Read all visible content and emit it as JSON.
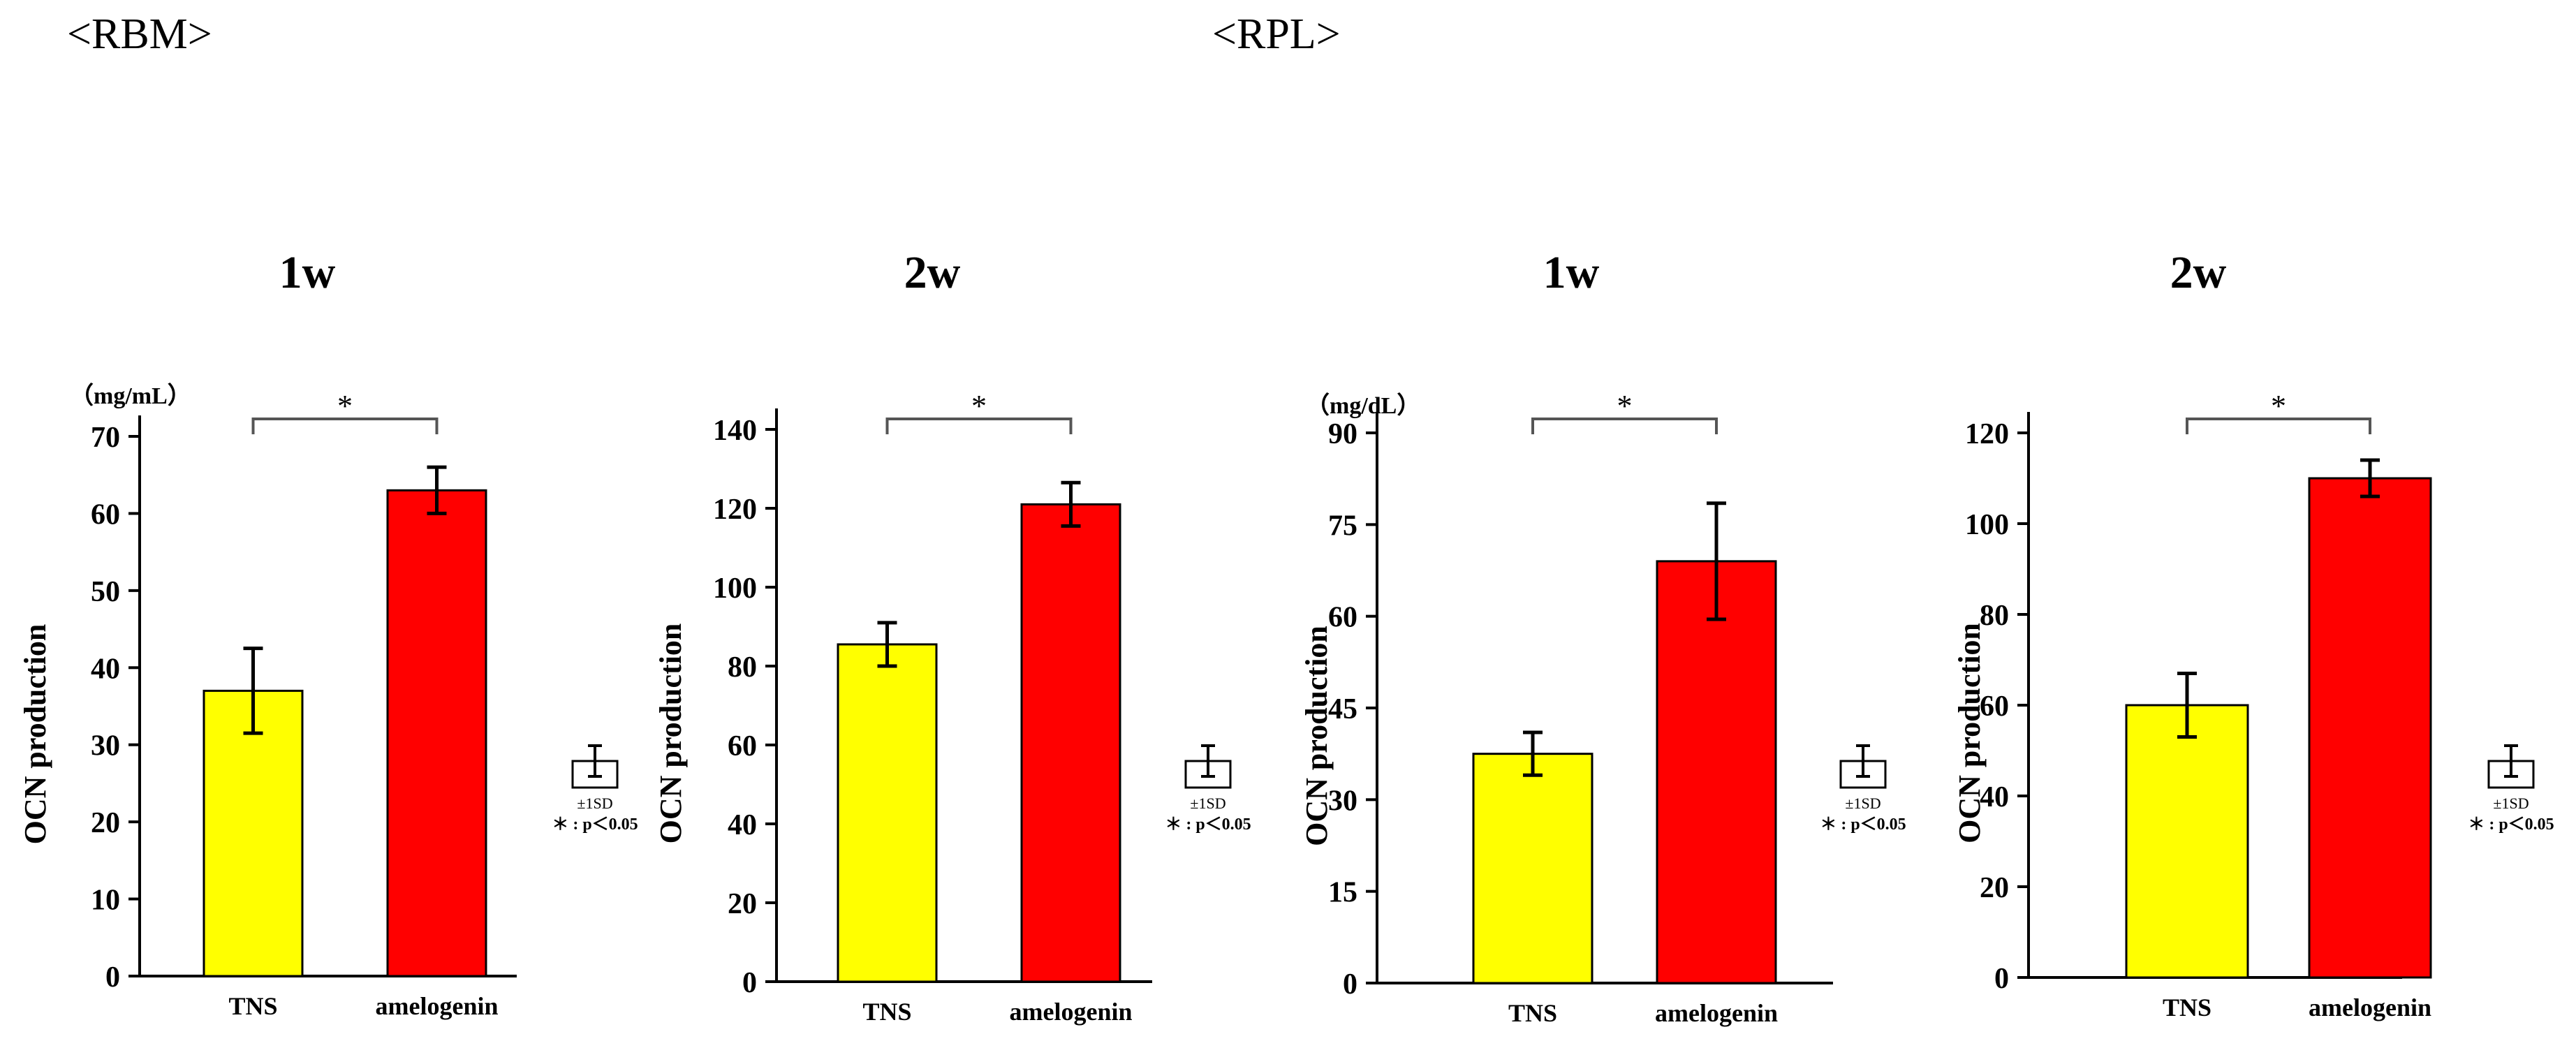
{
  "groups": {
    "rbm": "<RBM>",
    "rpl": "<RPL>"
  },
  "legend": {
    "sd_label": "±1SD",
    "sig_label": "＊ : p＜0.05"
  },
  "chart_data": [
    {
      "type": "bar",
      "group": "<RBM>",
      "title": "1w",
      "ylabel": "OCN production",
      "unit": "（mg/mL）",
      "categories": [
        "TNS",
        "amelogenin"
      ],
      "values": [
        37,
        63
      ],
      "errors": [
        5.5,
        3
      ],
      "colors": [
        "#ffff00",
        "#ff0000"
      ],
      "ylim": [
        0,
        70
      ],
      "yticks": [
        0,
        10,
        20,
        30,
        40,
        50,
        60,
        70
      ],
      "significance": "*"
    },
    {
      "type": "bar",
      "group": "<RBM>",
      "title": "2w",
      "ylabel": "OCN production",
      "unit": "",
      "categories": [
        "TNS",
        "amelogenin"
      ],
      "values": [
        85.5,
        121
      ],
      "errors": [
        5.5,
        5.5
      ],
      "colors": [
        "#ffff00",
        "#ff0000"
      ],
      "ylim": [
        0,
        140
      ],
      "yticks": [
        0,
        20,
        40,
        60,
        80,
        100,
        120,
        140
      ],
      "significance": "*"
    },
    {
      "type": "bar",
      "group": "<RPL>",
      "title": "1w",
      "ylabel": "OCN production",
      "unit": "（mg/dL）",
      "categories": [
        "TNS",
        "amelogenin"
      ],
      "values": [
        37.5,
        69
      ],
      "errors": [
        3.5,
        9.5
      ],
      "colors": [
        "#ffff00",
        "#ff0000"
      ],
      "ylim": [
        0,
        90
      ],
      "yticks": [
        0,
        15,
        30,
        45,
        60,
        75,
        90
      ],
      "significance": "*"
    },
    {
      "type": "bar",
      "group": "<RPL>",
      "title": "2w",
      "ylabel": "OCN production",
      "unit": "",
      "categories": [
        "TNS",
        "amelogenin"
      ],
      "values": [
        60,
        110
      ],
      "errors": [
        7,
        4
      ],
      "colors": [
        "#ffff00",
        "#ff0000"
      ],
      "ylim": [
        0,
        120
      ],
      "yticks": [
        0,
        20,
        40,
        60,
        80,
        100,
        120
      ],
      "significance": "*"
    }
  ]
}
